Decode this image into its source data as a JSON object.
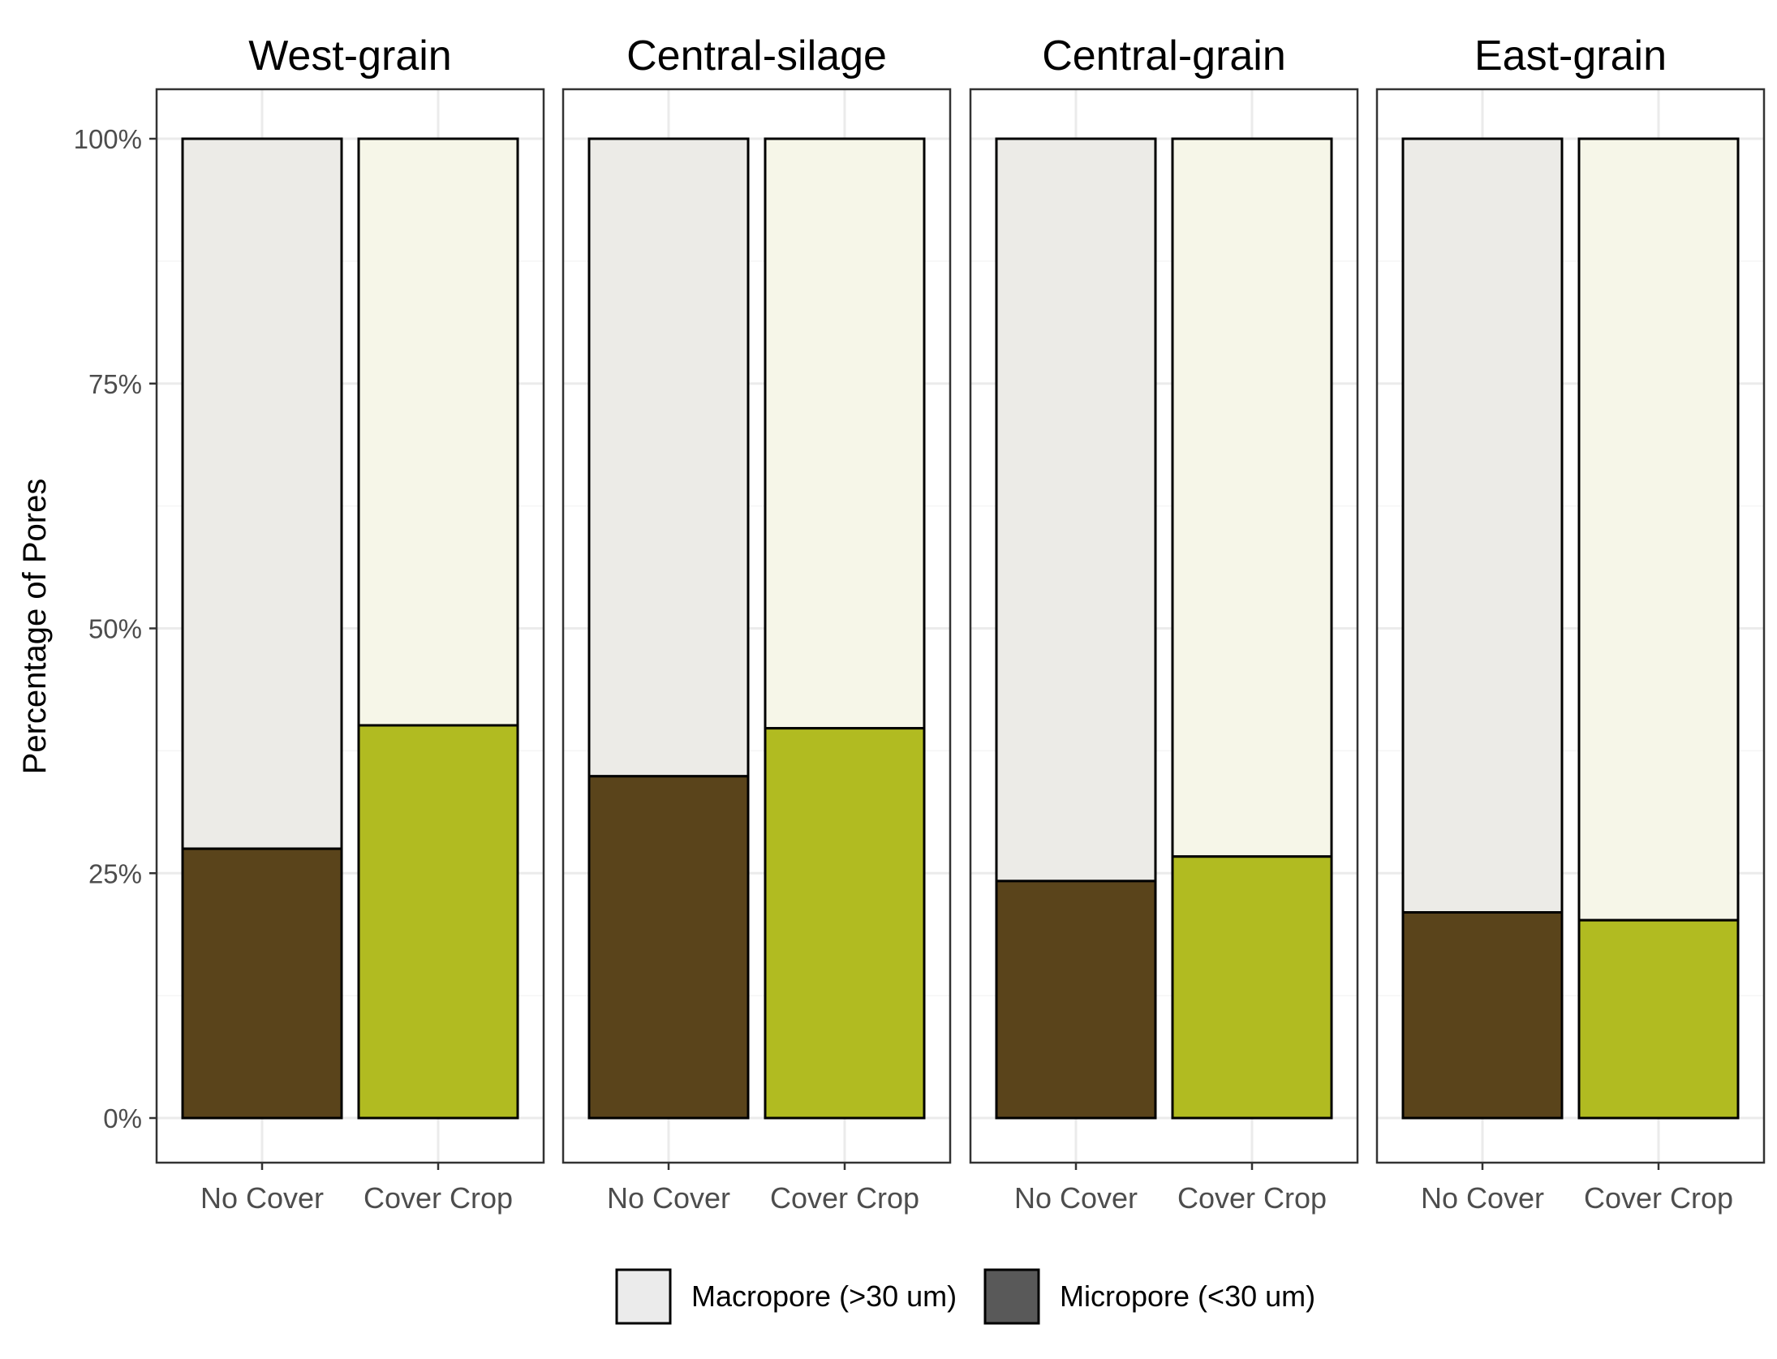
{
  "chart_data": {
    "type": "bar",
    "stacked": "percent",
    "facets": [
      "West-grain",
      "Central-silage",
      "Central-grain",
      "East-grain"
    ],
    "categories": [
      "No Cover",
      "Cover Crop"
    ],
    "ylabel": "Percentage of Pores",
    "xlabel": "",
    "ylim": [
      0,
      100
    ],
    "yticks": [
      "0%",
      "25%",
      "50%",
      "75%",
      "100%"
    ],
    "grid": true,
    "legend_position": "bottom",
    "legend": [
      {
        "label": "Macropore (>30 um)",
        "color": "#ebebeb"
      },
      {
        "label": "Micropore (<30 um)",
        "color": "#595959"
      }
    ],
    "series": [
      {
        "name": "Micropore (<30 um)",
        "values": {
          "West-grain": [
            27.5,
            40.1
          ],
          "Central-silage": [
            34.9,
            39.8
          ],
          "Central-grain": [
            24.2,
            26.7
          ],
          "East-grain": [
            21.0,
            20.2
          ]
        }
      },
      {
        "name": "Macropore (>30 um)",
        "values": {
          "West-grain": [
            72.5,
            59.9
          ],
          "Central-silage": [
            65.1,
            60.2
          ],
          "Central-grain": [
            75.8,
            73.3
          ],
          "East-grain": [
            79.0,
            79.8
          ]
        }
      }
    ],
    "colors": {
      "micro_no_cover": "#5a441b",
      "micro_cover_crop": "#b1bb21",
      "macro_no_cover": "#ecebe7",
      "macro_cover_crop": "#f6f6e8",
      "legend_macro": "#ebebeb",
      "legend_micro": "#595959",
      "grid_major": "#ebebeb",
      "grid_minor": "#f5f5f5",
      "border": "#333333",
      "bar_outline": "#000000"
    }
  }
}
